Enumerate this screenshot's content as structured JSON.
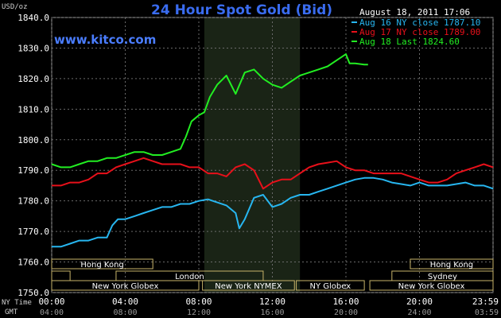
{
  "chart_data": {
    "type": "line",
    "title": "24 Hour Spot Gold (Bid)",
    "website": "www.kitco.com",
    "timestamp": "August 18, 2011 17:06",
    "ylabel": "USD/oz",
    "ylim": [
      1750,
      1840
    ],
    "yticks": [
      1750,
      1760,
      1770,
      1780,
      1790,
      1800,
      1810,
      1820,
      1830,
      1840
    ],
    "ytick_labels": [
      "1750.0",
      "1760.0",
      "1770.0",
      "1780.0",
      "1790.0",
      "1800.0",
      "1810.0",
      "1820.0",
      "1830.0",
      "1840.0"
    ],
    "xlim": [
      0,
      24
    ],
    "xticks": [
      0,
      4,
      8,
      12,
      16,
      20,
      24
    ],
    "xtick_labels": [
      "00:00",
      "04:00",
      "08:00",
      "12:00",
      "16:00",
      "20:00",
      "23:59"
    ],
    "gmt_labels": [
      "04:00",
      "08:00",
      "12:00",
      "16:00",
      "20:00",
      "24:00",
      "03:59"
    ],
    "x_row_labels": [
      "NY Time",
      "GMT"
    ],
    "grid": true,
    "shaded_window": [
      8.3,
      13.5
    ],
    "legend_position": "top-right",
    "series": [
      {
        "name": "Aug 16 NY close 1787.10",
        "color": "#27b6f0",
        "x": [
          0,
          0.5,
          1,
          1.5,
          2,
          2.5,
          3,
          3.3,
          3.6,
          4,
          4.5,
          5,
          5.5,
          6,
          6.5,
          7,
          7.5,
          8,
          8.5,
          9,
          9.5,
          10,
          10.2,
          10.5,
          11,
          11.5,
          12,
          12.5,
          13,
          13.5,
          14,
          14.5,
          15,
          15.5,
          16,
          16.5,
          17,
          17.5,
          18,
          18.5,
          19,
          19.5,
          20,
          20.5,
          21,
          21.5,
          22,
          22.5,
          23,
          23.5,
          24
        ],
        "values": [
          1765,
          1765,
          1766,
          1767,
          1767,
          1768,
          1768,
          1772,
          1774,
          1774,
          1775,
          1776,
          1777,
          1778,
          1778,
          1779,
          1779,
          1780,
          1780.5,
          1779.5,
          1778.5,
          1776,
          1771,
          1774,
          1781,
          1782,
          1778,
          1779,
          1781,
          1782,
          1782,
          1783,
          1784,
          1785,
          1786,
          1787,
          1787.5,
          1787.5,
          1787,
          1786,
          1785.5,
          1785,
          1786,
          1785,
          1785,
          1785,
          1785.5,
          1786,
          1785,
          1785,
          1784
        ]
      },
      {
        "name": "Aug 17 NY close 1789.00",
        "color": "#e8101a",
        "x": [
          0,
          0.5,
          1,
          1.5,
          2,
          2.5,
          3,
          3.5,
          4,
          4.5,
          5,
          5.5,
          6,
          6.5,
          7,
          7.5,
          8,
          8.5,
          9,
          9.5,
          10,
          10.5,
          11,
          11.5,
          12,
          12.5,
          13,
          13.5,
          14,
          14.5,
          15,
          15.5,
          16,
          16.5,
          17,
          17.5,
          18,
          18.5,
          19,
          19.5,
          20,
          20.5,
          21,
          21.5,
          22,
          22.5,
          23,
          23.5,
          24
        ],
        "values": [
          1785,
          1785,
          1786,
          1786,
          1787,
          1789,
          1789,
          1791,
          1792,
          1793,
          1794,
          1793,
          1792,
          1792,
          1792,
          1791,
          1791,
          1789,
          1789,
          1788,
          1791,
          1792,
          1790,
          1784,
          1786,
          1787,
          1787,
          1789,
          1791,
          1792,
          1792.5,
          1793,
          1791,
          1790,
          1790,
          1789,
          1789,
          1789,
          1789,
          1788,
          1787,
          1786,
          1786,
          1787,
          1789,
          1790,
          1791,
          1792,
          1791
        ]
      },
      {
        "name": "Aug 18 Last 1824.60",
        "color": "#22ee22",
        "x": [
          0,
          0.5,
          1,
          1.5,
          2,
          2.5,
          3,
          3.5,
          4,
          4.5,
          5,
          5.5,
          6,
          6.5,
          7,
          7.3,
          7.6,
          8,
          8.3,
          8.6,
          9,
          9.5,
          10,
          10.5,
          11,
          11.5,
          12,
          12.5,
          13,
          13.5,
          14,
          14.5,
          15,
          15.5,
          16,
          16.2,
          16.5,
          17,
          17.2
        ],
        "values": [
          1792,
          1791,
          1791,
          1792,
          1793,
          1793,
          1794,
          1794,
          1795,
          1796,
          1796,
          1795,
          1795,
          1796,
          1797,
          1801,
          1806,
          1808,
          1809,
          1814,
          1818,
          1821,
          1815,
          1822,
          1823,
          1820,
          1818,
          1817,
          1819,
          1821,
          1822,
          1823,
          1824,
          1826,
          1828,
          1825,
          1825,
          1824.6,
          1824.6
        ]
      }
    ],
    "sessions": [
      {
        "label": "Hong Kong",
        "start": 0,
        "end": 5.5,
        "row": 0
      },
      {
        "label": "Hong Kong",
        "start": 19.5,
        "end": 24,
        "row": 0
      },
      {
        "label": "London",
        "start": 3.5,
        "end": 11.5,
        "row": 1
      },
      {
        "label": "Sydney",
        "start": 18.5,
        "end": 24,
        "row": 1
      },
      {
        "label": "",
        "start": 0,
        "end": 1.0,
        "row": 1
      },
      {
        "label": "New York Globex",
        "start": 0,
        "end": 8.0,
        "row": 2
      },
      {
        "label": "New York NYMEX",
        "start": 8.2,
        "end": 13.2,
        "row": 2
      },
      {
        "label": "NY Globex",
        "start": 13.3,
        "end": 17.0,
        "row": 2
      },
      {
        "label": "New York Globex",
        "start": 17.3,
        "end": 24,
        "row": 2
      }
    ]
  }
}
